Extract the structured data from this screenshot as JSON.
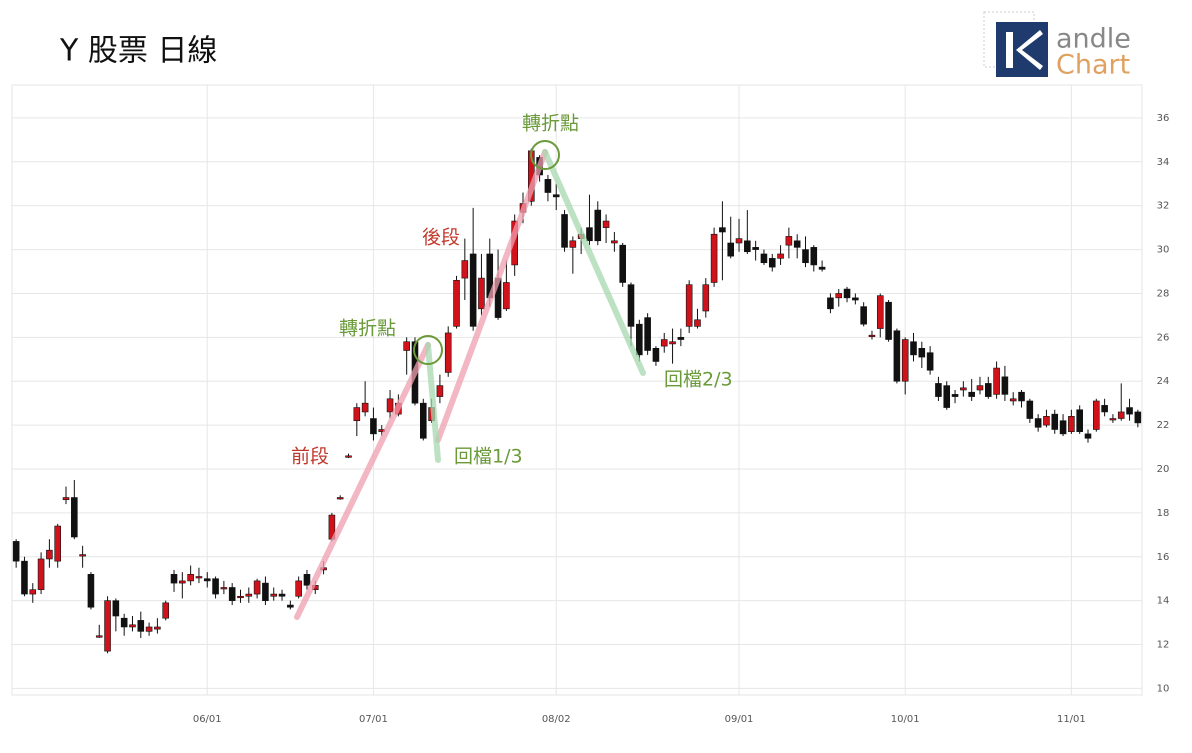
{
  "chart_data": {
    "type": "candlestick",
    "title": "Y 股票 日線",
    "categories": [
      null,
      null,
      null,
      null,
      null,
      null,
      null,
      null,
      null,
      null,
      null,
      null,
      null,
      null,
      null,
      null,
      null,
      null,
      null,
      null,
      null,
      null,
      null,
      "06/01",
      null,
      null,
      null,
      null,
      null,
      null,
      null,
      null,
      null,
      null,
      null,
      null,
      null,
      null,
      null,
      null,
      null,
      null,
      null,
      "07/01",
      null,
      null,
      null,
      null,
      null,
      null,
      null,
      null,
      null,
      null,
      null,
      null,
      null,
      null,
      null,
      null,
      null,
      null,
      null,
      null,
      null,
      "08/02",
      null,
      null,
      null,
      null,
      null,
      null,
      null,
      null,
      null,
      null,
      null,
      null,
      null,
      null,
      null,
      null,
      null,
      null,
      null,
      null,
      null,
      "09/01",
      null,
      null,
      null,
      null,
      null,
      null,
      null,
      null,
      null,
      null,
      null,
      null,
      null,
      null,
      null,
      null,
      null,
      null,
      null,
      "10/01",
      null,
      null,
      null,
      null,
      null,
      null,
      null,
      null,
      null,
      null,
      null,
      null,
      null,
      null,
      null,
      null,
      null,
      null,
      null,
      "11/01",
      null,
      null,
      null,
      null,
      null,
      null,
      null,
      null
    ],
    "open": [
      16.7,
      15.8,
      14.3,
      14.5,
      15.9,
      15.8,
      18.6,
      18.7,
      16.1,
      15.2,
      12.4,
      11.7,
      14,
      13.2,
      12.8,
      13.1,
      12.6,
      12.7,
      13.2,
      15.2,
      14.8,
      14.9,
      15.1,
      15,
      15,
      14.6,
      14.6,
      14.2,
      14.2,
      14.3,
      14.8,
      14.2,
      14.3,
      13.8,
      14.2,
      15.2,
      14.5,
      15.4,
      16.8,
      18.7,
      20.6,
      22.2,
      22.6,
      22.3,
      21.7,
      22.6,
      22.5,
      25.4,
      25.8,
      23,
      22.2,
      23.3,
      24.4,
      26.5,
      28.7,
      29.8,
      27.3,
      29.8,
      28.7,
      27.3,
      29.3,
      31.7,
      32.2,
      34.2,
      33.2,
      32.5,
      31.6,
      30.1,
      30.5,
      31,
      31.8,
      31,
      30.3,
      30.2,
      28.4,
      26.6,
      26.9,
      25.5,
      25.6,
      25.7,
      26,
      26.5,
      26.5,
      27.2,
      28.5,
      31,
      30.3,
      30.3,
      30.4,
      30.1,
      29.8,
      29.6,
      29.6,
      30.2,
      30.4,
      30,
      30.1,
      29.2,
      27.8,
      27.8,
      28.2,
      27.8,
      27.4,
      26.1,
      26.4,
      27.6,
      26.3,
      24,
      25.8,
      25.5,
      25.3,
      23.9,
      23.8,
      23.4,
      23.6,
      23.5,
      23.6,
      23.9,
      23.4,
      24.2,
      23.1,
      23.5,
      23.1,
      22.3,
      22,
      22.5,
      22.2,
      21.7,
      22.7,
      21.6,
      21.8,
      22.9,
      22.3,
      22.3,
      22.8,
      22.6
    ],
    "high": [
      16.8,
      16,
      14.8,
      16.2,
      16.8,
      17.5,
      19.2,
      19.5,
      16.5,
      15.3,
      12.9,
      14.2,
      14.1,
      13.4,
      13.3,
      13.5,
      13,
      13.2,
      14,
      15.4,
      15.3,
      15.6,
      15.5,
      15.3,
      15.1,
      14.9,
      14.8,
      14.5,
      14.6,
      15,
      15.1,
      14.6,
      14.5,
      14,
      15.1,
      15.4,
      14.9,
      15.8,
      18,
      18.8,
      20.7,
      23,
      24,
      22.8,
      22,
      23.6,
      23.4,
      26,
      26,
      23.2,
      23.2,
      24.3,
      26.5,
      28.8,
      30.5,
      31.9,
      29.8,
      30.5,
      30,
      29.5,
      31.6,
      32.6,
      34.6,
      34.3,
      33.4,
      33,
      31.8,
      30.6,
      31,
      32.5,
      32.2,
      31.6,
      30.8,
      30.3,
      28.5,
      26.8,
      27.1,
      25.6,
      26.2,
      26.4,
      26.4,
      28.6,
      27.3,
      28.7,
      31,
      32.2,
      31.5,
      31.4,
      31.8,
      30.4,
      30,
      29.8,
      30.2,
      31,
      30.7,
      30.6,
      30.2,
      29.5,
      28,
      28.2,
      28.3,
      28,
      27.6,
      26.3,
      28,
      27.7,
      26.4,
      26,
      26.2,
      25.8,
      25.6,
      24.2,
      24,
      23.6,
      24,
      24.1,
      24.2,
      24.2,
      24.9,
      24.7,
      23.5,
      23.6,
      23.2,
      22.5,
      22.7,
      22.7,
      22.5,
      22.7,
      22.9,
      21.8,
      23.2,
      23.2,
      22.5,
      23.9,
      23.2,
      22.7
    ],
    "low": [
      15.5,
      14.2,
      13.9,
      14.3,
      15.5,
      15.5,
      18.4,
      16.8,
      15.5,
      13.6,
      12.3,
      11.6,
      12.6,
      12.4,
      12.6,
      12.3,
      12.4,
      12.5,
      13.1,
      14.4,
      14.1,
      14.7,
      14.8,
      14.6,
      14.1,
      14.3,
      13.8,
      13.9,
      13.9,
      14.1,
      13.8,
      14,
      14,
      13.6,
      14.1,
      14.5,
      14.3,
      15.2,
      16.7,
      18.6,
      20.5,
      21.5,
      22.4,
      21.3,
      21.5,
      22.3,
      22.4,
      24.3,
      22.9,
      21.3,
      22.1,
      23,
      24.2,
      26.4,
      27.7,
      26.3,
      27,
      27.4,
      26.8,
      27.2,
      28.8,
      31.2,
      32,
      33.1,
      32.2,
      31.8,
      29.9,
      28.9,
      29.8,
      30.2,
      30.2,
      30.3,
      29.9,
      28.3,
      25.6,
      24.9,
      25.2,
      24.7,
      25.3,
      24.8,
      25.6,
      26.2,
      26.4,
      26.9,
      28.3,
      28.6,
      29.6,
      29.9,
      29.8,
      29.5,
      29.3,
      29,
      29.3,
      29.6,
      29.6,
      29.2,
      29,
      29,
      27.1,
      27.4,
      27.6,
      27.5,
      26.5,
      25.9,
      26,
      25.8,
      23.9,
      23.4,
      24.9,
      24.6,
      24.3,
      23.1,
      22.7,
      23,
      23.3,
      23.1,
      23.4,
      23.2,
      23.2,
      23.1,
      22.9,
      22.8,
      22.1,
      21.7,
      21.9,
      21.6,
      21.5,
      21.6,
      21.6,
      21.2,
      21.7,
      22.4,
      22.1,
      22.2,
      22.2,
      21.9
    ],
    "close": [
      15.8,
      14.3,
      14.5,
      15.9,
      16.3,
      17.4,
      18.7,
      16.9,
      16.1,
      13.7,
      12.4,
      14,
      13.3,
      12.8,
      12.9,
      12.6,
      12.8,
      12.8,
      13.9,
      14.8,
      14.9,
      15.2,
      15.1,
      14.9,
      14.3,
      14.6,
      14,
      14.2,
      14.3,
      14.9,
      14,
      14.3,
      14.2,
      13.7,
      14.9,
      14.7,
      14.7,
      15.5,
      17.9,
      18.7,
      20.6,
      22.8,
      23,
      21.6,
      21.8,
      23.2,
      23,
      25.8,
      23,
      21.4,
      22.8,
      23.8,
      26.2,
      28.6,
      29.5,
      26.5,
      28.7,
      27.8,
      26.9,
      28.5,
      31.3,
      32.1,
      34.5,
      33.4,
      32.6,
      32.4,
      30.1,
      30.4,
      30.7,
      30.4,
      30.4,
      31.3,
      30.4,
      28.5,
      26.5,
      25.2,
      25.4,
      24.9,
      25.9,
      25.8,
      25.9,
      28.4,
      26.8,
      28.4,
      30.7,
      30.8,
      29.7,
      30.5,
      29.9,
      30,
      29.4,
      29.2,
      29.8,
      30.6,
      30.1,
      29.4,
      29.3,
      29.1,
      27.3,
      28,
      27.8,
      27.7,
      26.6,
      26.1,
      27.9,
      25.9,
      24,
      25.9,
      25.2,
      25.1,
      24.5,
      23.3,
      22.8,
      23.3,
      23.7,
      23.3,
      23.8,
      23.3,
      24.6,
      23.4,
      23.2,
      23.1,
      22.3,
      21.9,
      22.4,
      21.8,
      21.6,
      22.4,
      21.7,
      21.4,
      23.1,
      22.6,
      22.3,
      22.6,
      22.5,
      22.1
    ],
    "up_color": "#d0121b",
    "down_color": "#111111",
    "ylim": [
      9.7,
      37.5
    ],
    "yticks": [
      10,
      12,
      14,
      16,
      18,
      20,
      22,
      24,
      26,
      28,
      30,
      32,
      34,
      36
    ],
    "grid": true,
    "annotations": {
      "turn1": "轉折點",
      "turn2": "轉折點",
      "front": "前段",
      "back": "後段",
      "pull1": "回檔1/3",
      "pull2": "回檔2/3"
    }
  },
  "logo": {
    "line1": "andle",
    "line2": "Chart"
  }
}
